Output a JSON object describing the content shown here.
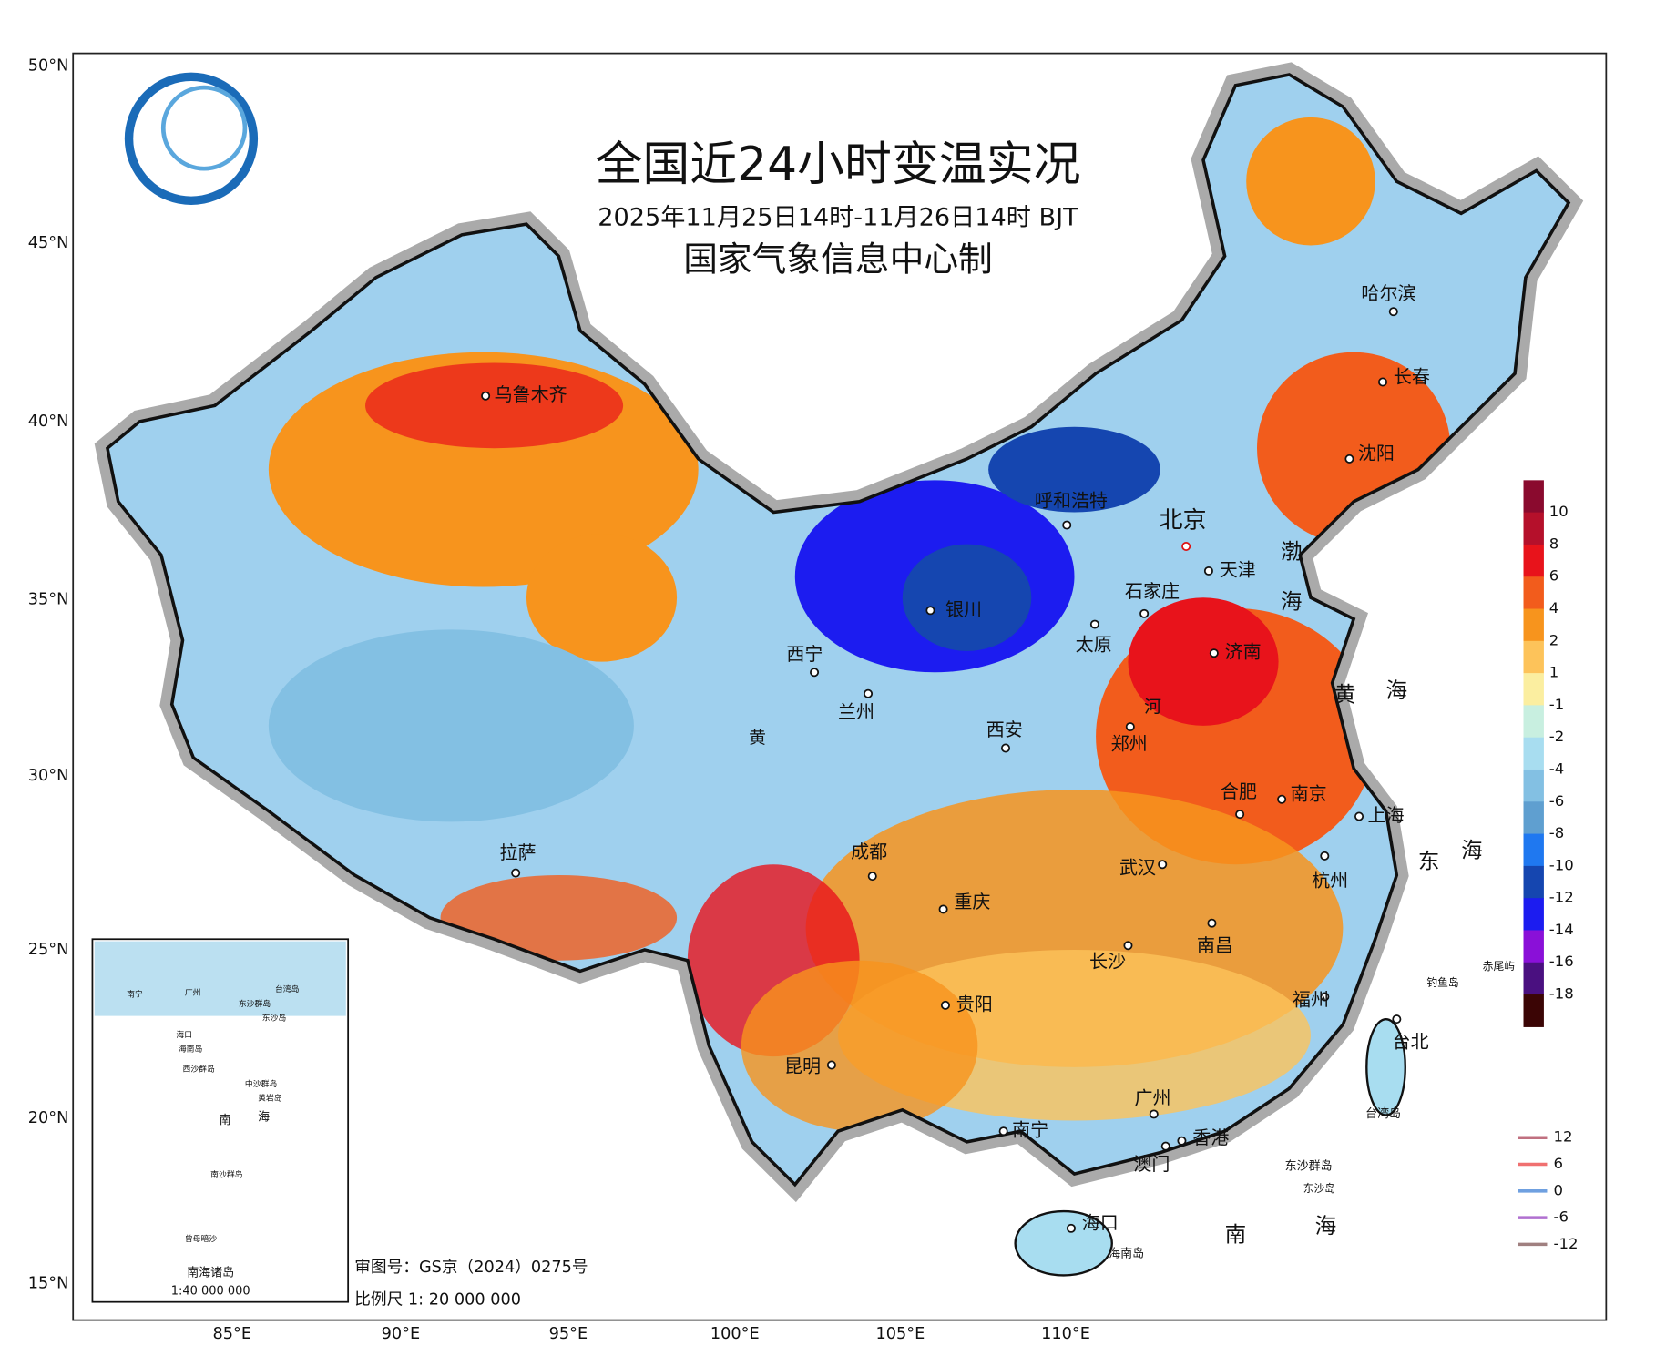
{
  "header": {
    "title": "全国近24小时变温实况",
    "subtitle": "2025年11月25日14时-11月26日14时 BJT",
    "producer": "国家气象信息中心制"
  },
  "lat_labels": [
    "50°N",
    "45°N",
    "40°N",
    "35°N",
    "30°N",
    "25°N",
    "20°N",
    "15°N"
  ],
  "lon_labels": [
    "85°E",
    "90°E",
    "95°E",
    "100°E",
    "105°E",
    "110°E"
  ],
  "cities": [
    "乌鲁木齐",
    "呼和浩特",
    "北京",
    "天津",
    "石家庄",
    "太原",
    "济南",
    "银川",
    "西宁",
    "兰州",
    "西安",
    "郑州",
    "合肥",
    "南京",
    "上海",
    "拉萨",
    "成都",
    "重庆",
    "武汉",
    "杭州",
    "长沙",
    "南昌",
    "贵阳",
    "福州",
    "台北",
    "昆明",
    "广州",
    "南宁",
    "香港",
    "澳门",
    "海口",
    "哈尔滨",
    "长春",
    "沈阳"
  ],
  "places": [
    "渤",
    "海",
    "黄",
    "海",
    "东",
    "海",
    "南",
    "海",
    "钓鱼岛",
    "赤尾屿",
    "台湾岛",
    "东沙群岛",
    "东沙岛",
    "海南岛",
    "河",
    "黄"
  ],
  "legend": {
    "labels": [
      "10",
      "8",
      "6",
      "4",
      "2",
      "1",
      "-1",
      "-2",
      "-4",
      "-6",
      "-8",
      "-10",
      "-12",
      "-14",
      "-16",
      "-18"
    ],
    "colors": [
      "#8a0a2e",
      "#b5102b",
      "#e8131b",
      "#f25c1c",
      "#f7941d",
      "#fdc35a",
      "#fbeea0",
      "#c8efe0",
      "#a8ddf0",
      "#83c0e3",
      "#5f9fd0",
      "#1f78f0",
      "#1546b0",
      "#1c1cf0",
      "#8a10d8",
      "#4a1080",
      "#3b0505"
    ]
  },
  "contour_legend": {
    "labels": [
      "12",
      "6",
      "0",
      "-6",
      "-12"
    ],
    "colors": [
      "#c07080",
      "#f07070",
      "#6fa0e0",
      "#b070d0",
      "#a08080"
    ]
  },
  "inset": {
    "title": "南海诸岛",
    "scale": "1:40 000 000",
    "labels": [
      "南宁",
      "广州",
      "台湾岛",
      "东沙群岛",
      "东沙岛",
      "海口",
      "海南岛",
      "西沙群岛",
      "中沙群岛",
      "黄岩岛",
      "南",
      "海",
      "南沙群岛",
      "曾母暗沙"
    ]
  },
  "footer": {
    "review": "审图号：GS京（2024）0275号",
    "scale": "比例尺 1: 20 000 000"
  }
}
